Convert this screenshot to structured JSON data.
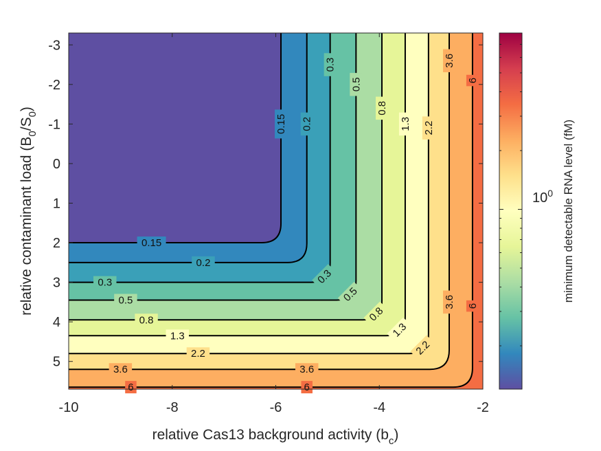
{
  "chart_data": {
    "type": "contour",
    "xlabel": "relative Cas13 background activity (b",
    "xlabel_sub": "c",
    "xlabel_end": ")",
    "ylabel": "relative contaminant load (B",
    "ylabel_sub0": "0",
    "ylabel_mid": "/S",
    "ylabel_sub1": "0",
    "ylabel_end": ")",
    "xlim": [
      -10,
      -2
    ],
    "ylim": [
      -3.3,
      5.7
    ],
    "y_reversed": true,
    "xticks": [
      -10,
      -8,
      -6,
      -4,
      -2
    ],
    "xtick_labels": [
      "-10",
      "-8",
      "-6",
      "-4",
      "-2"
    ],
    "yticks": [
      -3,
      -2,
      -1,
      0,
      1,
      2,
      3,
      4,
      5
    ],
    "ytick_labels": [
      "-3",
      "-2",
      "-1",
      "0",
      "1",
      "2",
      "3",
      "4",
      "5"
    ],
    "contour_levels": [
      0.15,
      0.2,
      0.3,
      0.5,
      0.8,
      1.3,
      2.2,
      3.6,
      6
    ],
    "level_labels": [
      "0.15",
      "0.2",
      "0.3",
      "0.5",
      "0.8",
      "1.3",
      "2.2",
      "3.6",
      "6"
    ],
    "contour_corners": [
      {
        "level": 0.15,
        "x": -5.9,
        "y": 2.0
      },
      {
        "level": 0.2,
        "x": -5.4,
        "y": 2.5
      },
      {
        "level": 0.3,
        "x": -4.95,
        "y": 3.0
      },
      {
        "level": 0.5,
        "x": -4.45,
        "y": 3.45
      },
      {
        "level": 0.8,
        "x": -3.95,
        "y": 3.95
      },
      {
        "level": 1.3,
        "x": -3.5,
        "y": 4.35
      },
      {
        "level": 2.2,
        "x": -3.05,
        "y": 4.8
      },
      {
        "level": 3.6,
        "x": -2.65,
        "y": 5.2
      },
      {
        "level": 6,
        "x": -2.2,
        "y": 5.65
      }
    ],
    "band_colors": [
      "#5e4fa2",
      "#3288bd",
      "#3aa0b8",
      "#66c2a5",
      "#abdda4",
      "#e6f598",
      "#ffffbf",
      "#fee08b",
      "#fdae61",
      "#f46d43",
      "#d53e4f",
      "#9e0142"
    ],
    "colorbar": {
      "label": "minimum detectable RNA level (fM)",
      "tick_base": "10",
      "tick_exp": "0",
      "tick_value": 1,
      "scale": "log",
      "range": [
        0.12,
        8
      ]
    }
  }
}
